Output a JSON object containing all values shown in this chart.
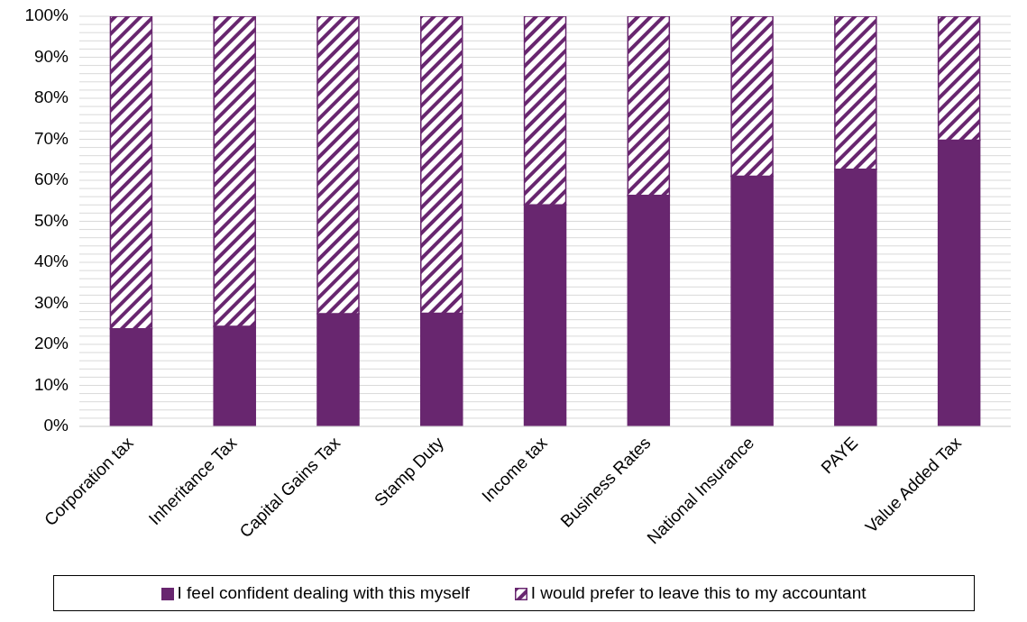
{
  "chart_data": {
    "type": "bar",
    "stacked": true,
    "categories": [
      "Corporation tax",
      "Inheritance Tax",
      "Capital Gains Tax",
      "Stamp Duty",
      "Income tax",
      "Business Rates",
      "National Insurance",
      "PAYE",
      "Value Added Tax"
    ],
    "series": [
      {
        "name": "I feel confident dealing with this myself",
        "color": "#68266f",
        "values": [
          23.8,
          24.4,
          27.5,
          27.6,
          54,
          56.3,
          61,
          62.7,
          69.8
        ]
      },
      {
        "name": "I would prefer to leave this to my accountant",
        "color": "#68266f",
        "values": [
          76.2,
          75.6,
          72.5,
          72.4,
          46,
          43.7,
          39,
          37.3,
          30.2
        ]
      }
    ],
    "ylim": [
      0,
      100
    ],
    "yticks": [
      {
        "value": 0,
        "label": "0%"
      },
      {
        "value": 2,
        "label": null
      },
      {
        "value": 4,
        "label": null
      },
      {
        "value": 6,
        "label": null
      },
      {
        "value": 8,
        "label": null
      },
      {
        "value": 10,
        "label": "10%"
      },
      {
        "value": 12,
        "label": null
      },
      {
        "value": 14,
        "label": null
      },
      {
        "value": 16,
        "label": null
      },
      {
        "value": 18,
        "label": null
      },
      {
        "value": 20,
        "label": "20%"
      },
      {
        "value": 22,
        "label": null
      },
      {
        "value": 24,
        "label": null
      },
      {
        "value": 26,
        "label": null
      },
      {
        "value": 28,
        "label": null
      },
      {
        "value": 30,
        "label": "30%"
      },
      {
        "value": 32,
        "label": null
      },
      {
        "value": 34,
        "label": null
      },
      {
        "value": 36,
        "label": null
      },
      {
        "value": 38,
        "label": null
      },
      {
        "value": 40,
        "label": "40%"
      },
      {
        "value": 42,
        "label": null
      },
      {
        "value": 44,
        "label": null
      },
      {
        "value": 46,
        "label": null
      },
      {
        "value": 48,
        "label": null
      },
      {
        "value": 50,
        "label": "50%"
      },
      {
        "value": 52,
        "label": null
      },
      {
        "value": 54,
        "label": null
      },
      {
        "value": 56,
        "label": null
      },
      {
        "value": 58,
        "label": null
      },
      {
        "value": 60,
        "label": "60%"
      },
      {
        "value": 62,
        "label": null
      },
      {
        "value": 64,
        "label": null
      },
      {
        "value": 66,
        "label": null
      },
      {
        "value": 68,
        "label": null
      },
      {
        "value": 70,
        "label": "70%"
      },
      {
        "value": 72,
        "label": null
      },
      {
        "value": 74,
        "label": null
      },
      {
        "value": 76,
        "label": null
      },
      {
        "value": 78,
        "label": null
      },
      {
        "value": 80,
        "label": "80%"
      },
      {
        "value": 82,
        "label": null
      },
      {
        "value": 84,
        "label": null
      },
      {
        "value": 86,
        "label": null
      },
      {
        "value": 88,
        "label": null
      },
      {
        "value": 90,
        "label": "90%"
      },
      {
        "value": 92,
        "label": null
      },
      {
        "value": 94,
        "label": null
      },
      {
        "value": 96,
        "label": null
      },
      {
        "value": 98,
        "label": null
      },
      {
        "value": 100,
        "label": "100%"
      }
    ],
    "grid": "y",
    "legend": "bottom"
  }
}
